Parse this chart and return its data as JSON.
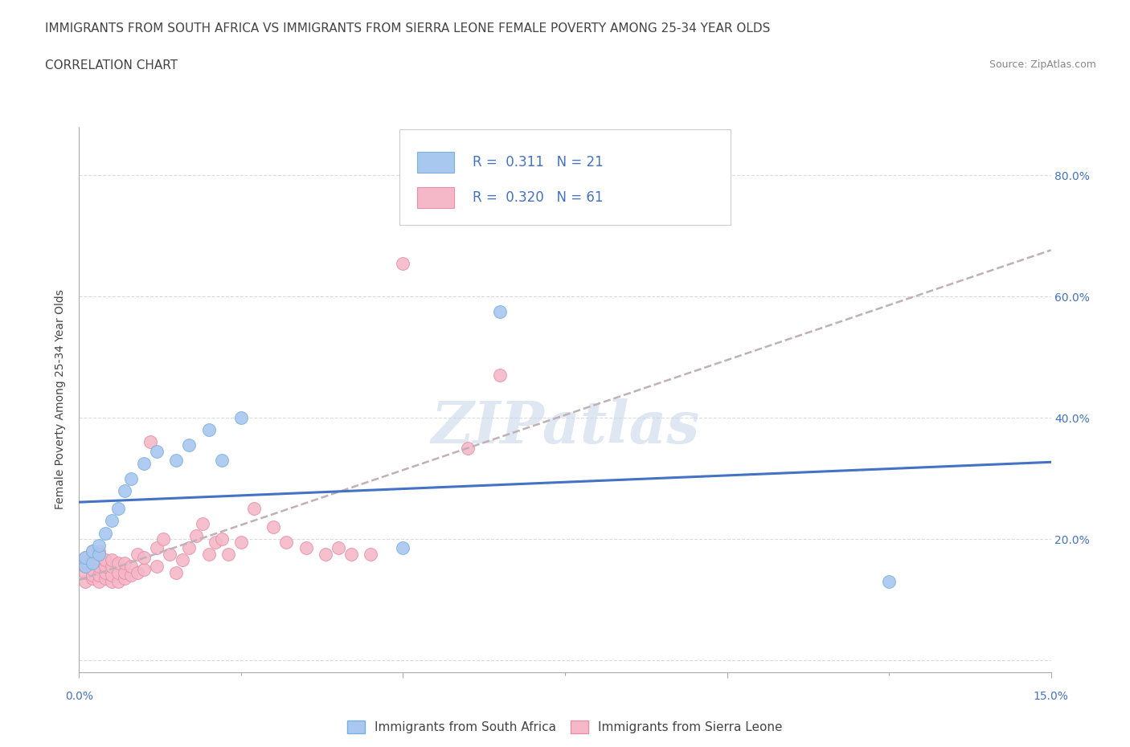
{
  "title": "IMMIGRANTS FROM SOUTH AFRICA VS IMMIGRANTS FROM SIERRA LEONE FEMALE POVERTY AMONG 25-34 YEAR OLDS",
  "subtitle": "CORRELATION CHART",
  "source": "Source: ZipAtlas.com",
  "ylabel": "Female Poverty Among 25-34 Year Olds",
  "xlim": [
    0.0,
    0.15
  ],
  "ylim": [
    -0.02,
    0.88
  ],
  "right_ytick_vals": [
    0.2,
    0.4,
    0.6,
    0.8
  ],
  "right_ytick_labels": [
    "20.0%",
    "40.0%",
    "60.0%",
    "80.0%"
  ],
  "xtick_vals": [
    0.0,
    0.05,
    0.1,
    0.15
  ],
  "series_south_africa": {
    "label": "Immigrants from South Africa",
    "color": "#a8c8f0",
    "border_color": "#7ab0e0",
    "R": 0.311,
    "N": 21,
    "x": [
      0.001,
      0.001,
      0.002,
      0.002,
      0.003,
      0.003,
      0.004,
      0.005,
      0.006,
      0.007,
      0.008,
      0.01,
      0.012,
      0.015,
      0.017,
      0.02,
      0.022,
      0.025,
      0.05,
      0.065,
      0.125
    ],
    "y": [
      0.155,
      0.17,
      0.16,
      0.18,
      0.175,
      0.19,
      0.21,
      0.23,
      0.25,
      0.28,
      0.3,
      0.325,
      0.345,
      0.33,
      0.355,
      0.38,
      0.33,
      0.4,
      0.185,
      0.575,
      0.13
    ]
  },
  "series_sierra_leone": {
    "label": "Immigrants from Sierra Leone",
    "color": "#f5b8c8",
    "border_color": "#e890a8",
    "R": 0.32,
    "N": 61,
    "x": [
      0.001,
      0.001,
      0.001,
      0.001,
      0.001,
      0.002,
      0.002,
      0.002,
      0.002,
      0.002,
      0.003,
      0.003,
      0.003,
      0.003,
      0.003,
      0.004,
      0.004,
      0.004,
      0.004,
      0.005,
      0.005,
      0.005,
      0.005,
      0.006,
      0.006,
      0.006,
      0.007,
      0.007,
      0.007,
      0.008,
      0.008,
      0.009,
      0.009,
      0.01,
      0.01,
      0.011,
      0.012,
      0.012,
      0.013,
      0.014,
      0.015,
      0.016,
      0.017,
      0.018,
      0.019,
      0.02,
      0.021,
      0.022,
      0.023,
      0.025,
      0.027,
      0.03,
      0.032,
      0.035,
      0.038,
      0.04,
      0.042,
      0.045,
      0.05,
      0.06,
      0.065
    ],
    "y": [
      0.13,
      0.145,
      0.155,
      0.16,
      0.17,
      0.135,
      0.14,
      0.15,
      0.165,
      0.18,
      0.13,
      0.14,
      0.155,
      0.165,
      0.18,
      0.135,
      0.145,
      0.155,
      0.165,
      0.13,
      0.14,
      0.155,
      0.165,
      0.13,
      0.145,
      0.16,
      0.135,
      0.145,
      0.16,
      0.14,
      0.155,
      0.145,
      0.175,
      0.15,
      0.17,
      0.36,
      0.155,
      0.185,
      0.2,
      0.175,
      0.145,
      0.165,
      0.185,
      0.205,
      0.225,
      0.175,
      0.195,
      0.2,
      0.175,
      0.195,
      0.25,
      0.22,
      0.195,
      0.185,
      0.175,
      0.185,
      0.175,
      0.175,
      0.655,
      0.35,
      0.47
    ]
  },
  "reg_sa_color": "#4472c4",
  "reg_sl_color": "#c0b0b8",
  "watermark_text": "ZIPatlas",
  "watermark_color": "#c8d8ea",
  "background_color": "#ffffff",
  "grid_color": "#d8d8d8",
  "text_color": "#444444",
  "blue_text_color": "#4472c4",
  "title_fontsize": 11,
  "subtitle_fontsize": 11,
  "axis_label_fontsize": 10,
  "tick_fontsize": 10
}
